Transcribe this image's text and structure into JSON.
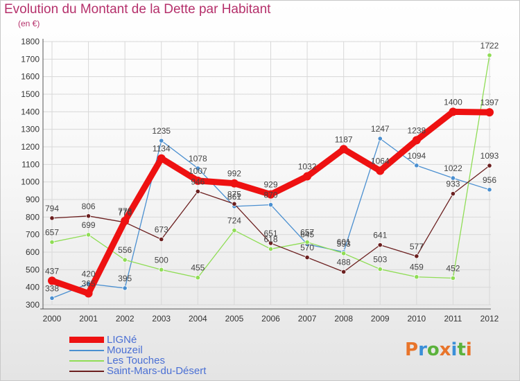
{
  "page": {
    "title": "Evolution du Montant de la Dette par Habitant",
    "subtitle": "(en €)",
    "logo": "Proxiti",
    "logo_colors": [
      "#e8742a",
      "#3a8fd8",
      "#5bb23c",
      "#e8742a",
      "#3a8fd8",
      "#5bb23c",
      "#e8742a"
    ]
  },
  "colors": {
    "title": "#b5306b",
    "legend_text": "#4a6fd4",
    "grid": "#d8d8d8",
    "axis": "#555555"
  },
  "chart_data": {
    "type": "line",
    "title": "Evolution du Montant de la Dette par Habitant",
    "ylabel": "(en €)",
    "ylim": [
      300,
      1800
    ],
    "yticks": [
      300,
      400,
      500,
      600,
      700,
      800,
      900,
      1000,
      1100,
      1200,
      1300,
      1400,
      1500,
      1600,
      1700,
      1800
    ],
    "x": [
      2000,
      2001,
      2002,
      2003,
      2004,
      2005,
      2006,
      2007,
      2008,
      2009,
      2010,
      2011,
      2012
    ],
    "grid": true,
    "legend_position": "bottom-left",
    "series": [
      {
        "name": "LIGNé",
        "color": "#ee1111",
        "values": [
          437,
          365,
          778,
          1134,
          1007,
          992,
          929,
          1032,
          1187,
          1064,
          1238,
          1400,
          1397
        ],
        "labels": [
          "437",
          "365",
          "778",
          "1134",
          "1007",
          "992",
          "929",
          "1032",
          "1187",
          "1064",
          "1238",
          "1400",
          "1397"
        ]
      },
      {
        "name": "Mouzeil",
        "color": "#4a8fd0",
        "values": [
          338,
          420,
          395,
          1235,
          1078,
          861,
          870,
          645,
          601,
          1247,
          1094,
          1022,
          956
        ],
        "labels": [
          "338",
          "420",
          "395",
          "1235",
          "1078",
          "861",
          "870",
          "645",
          "601",
          "1247",
          "1094",
          "1022",
          "956"
        ]
      },
      {
        "name": "Les Touches",
        "color": "#8fdd55",
        "values": [
          657,
          699,
          556,
          500,
          455,
          724,
          618,
          657,
          593,
          503,
          459,
          452,
          1722
        ],
        "labels": [
          "657",
          "699",
          "556",
          "500",
          "455",
          "724",
          "618",
          "657",
          "593",
          "503",
          "459",
          "452",
          "1722"
        ]
      },
      {
        "name": "Saint-Mars-du-Désert",
        "color": "#6b1f1f",
        "values": [
          794,
          806,
          770,
          673,
          946,
          875,
          651,
          570,
          488,
          641,
          577,
          933,
          1093
        ],
        "labels": [
          "794",
          "806",
          "770",
          "673",
          "946",
          "875",
          "651",
          "570",
          "488",
          "641",
          "577",
          "933",
          "1093"
        ]
      }
    ]
  }
}
